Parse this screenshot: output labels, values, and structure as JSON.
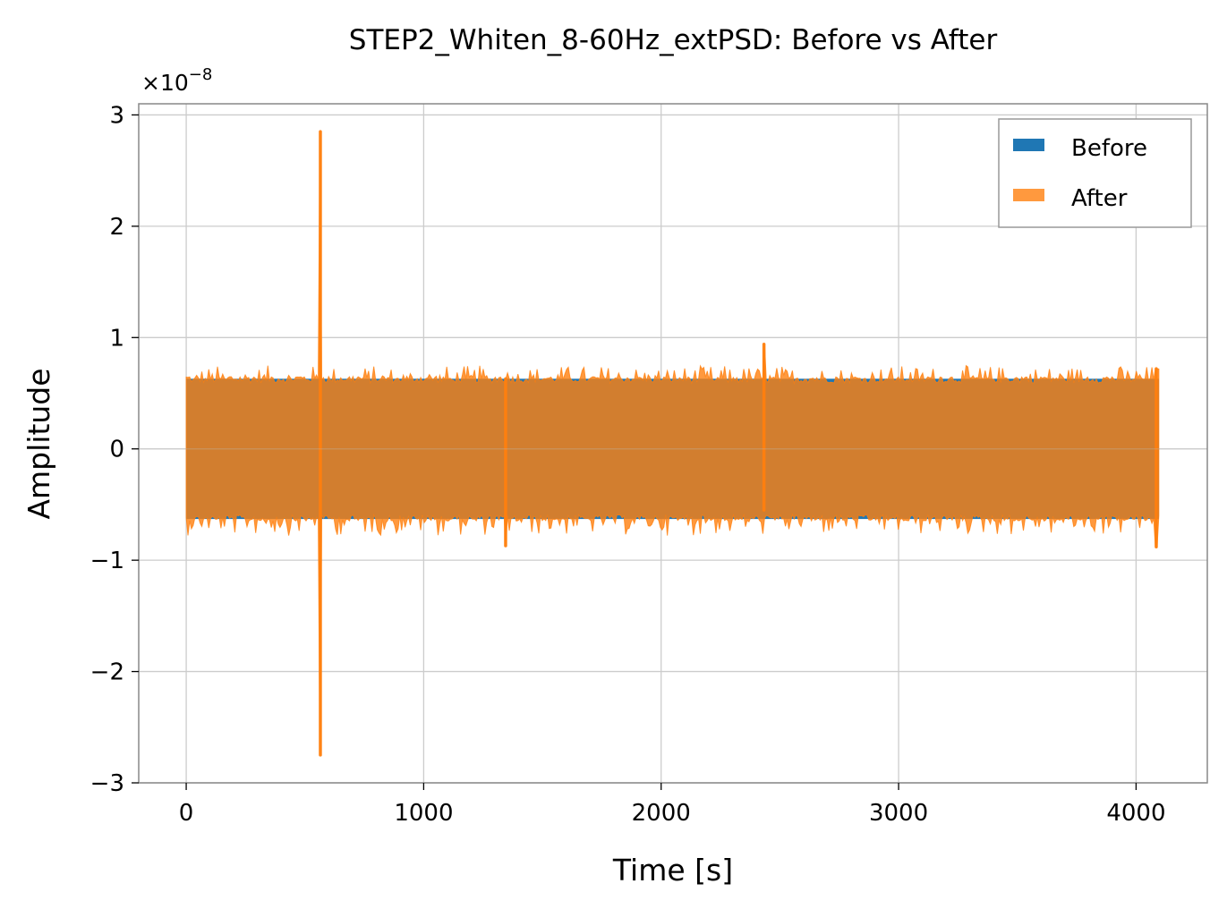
{
  "chart_data": {
    "type": "line",
    "title": "STEP2_Whiten_8-60Hz_extPSD: Before vs After",
    "xlabel": "Time [s]",
    "ylabel": "Amplitude",
    "y_offset_label": "×10",
    "y_offset_exponent": "−8",
    "xlim": [
      -200,
      4300
    ],
    "ylim": [
      -3.0,
      3.1
    ],
    "xticks": [
      0,
      1000,
      2000,
      3000,
      4000
    ],
    "xtick_labels": [
      "0",
      "1000",
      "2000",
      "3000",
      "4000"
    ],
    "yticks": [
      -3,
      -2,
      -1,
      0,
      1,
      2,
      3
    ],
    "ytick_labels": [
      "−3",
      "−2",
      "−1",
      "0",
      "1",
      "2",
      "3"
    ],
    "grid": true,
    "legend_position": "top-right",
    "x_range_data": [
      0,
      4096
    ],
    "series": [
      {
        "name": "Before",
        "color": "#1f77b4",
        "envelope": [
          {
            "x": 0,
            "upper": 0.63,
            "lower": -0.63
          }
        ]
      },
      {
        "name": "After",
        "color": "#ff7f0e",
        "opacity": 0.8,
        "typical_upper": 0.62,
        "typical_lower": -0.62,
        "peak_upper": 0.75,
        "peak_lower": -0.78,
        "spikes": [
          {
            "x": 565,
            "upper": 2.85,
            "lower": -2.75
          },
          {
            "x": 2433,
            "upper": 0.94,
            "lower": -0.55
          },
          {
            "x": 4085,
            "upper": 0.72,
            "lower": -0.88
          },
          {
            "x": 1345,
            "upper": 0.63,
            "lower": -0.87
          }
        ]
      }
    ]
  }
}
